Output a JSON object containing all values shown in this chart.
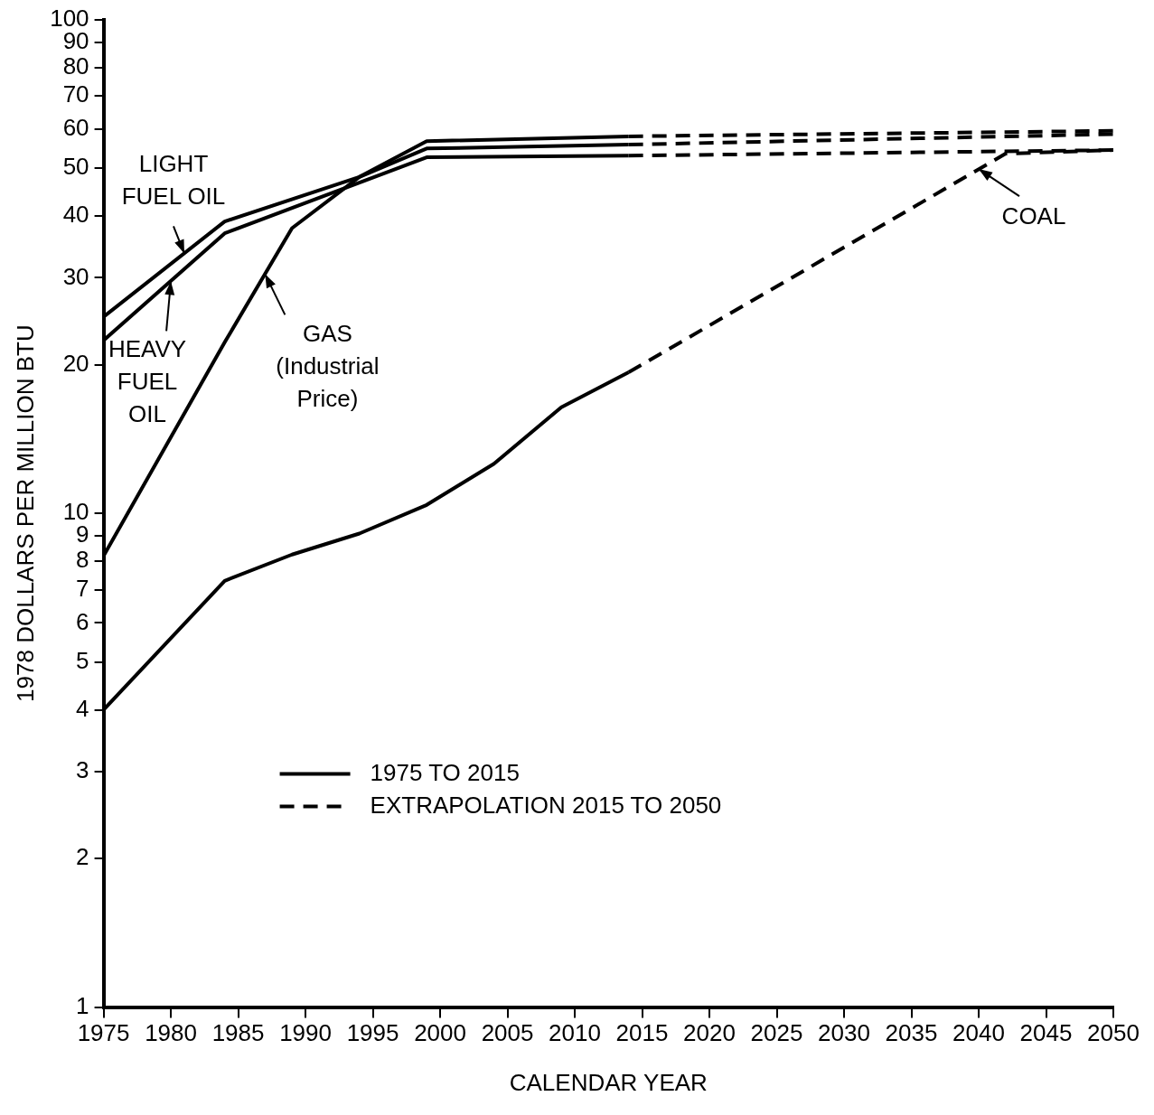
{
  "chart_data": {
    "type": "line",
    "xlabel": "CALENDAR YEAR",
    "ylabel": "1978 DOLLARS PER MILLION BTU",
    "xlim": [
      1975,
      2050
    ],
    "xticks": [
      1975,
      1980,
      1985,
      1990,
      1995,
      2000,
      2005,
      2010,
      2015,
      2020,
      2025,
      2030,
      2035,
      2040,
      2045,
      2050
    ],
    "ylim": [
      1,
      100
    ],
    "yticks": [
      1,
      2,
      3,
      4,
      5,
      6,
      7,
      8,
      9,
      10,
      20,
      30,
      40,
      50,
      60,
      70,
      80,
      90,
      100
    ],
    "log": "y",
    "grid": false,
    "legend": "bottom",
    "marker": "none",
    "series": [
      {
        "name": "1975 TO 2015",
        "color": "#000000",
        "line_style": "solid",
        "x": [
          1975,
          1984,
          1994,
          1999,
          2014
        ],
        "values": [
          25,
          39,
          48,
          54.8,
          55.8
        ]
      },
      {
        "color": "#000000",
        "line_style": "solid",
        "x": [
          1975,
          1984,
          1999,
          2014
        ],
        "values": [
          22.4,
          36.9,
          52.6,
          53
        ]
      },
      {
        "color": "#000000",
        "line_style": "solid",
        "x": [
          1975,
          1984,
          1989,
          1994,
          1999,
          2014
        ],
        "values": [
          8.2,
          22.2,
          37.8,
          48,
          56.7,
          58
        ]
      },
      {
        "color": "#000000",
        "line_style": "solid",
        "x": [
          1975,
          1984,
          1989,
          1994,
          1999,
          2004,
          2009,
          2014
        ],
        "values": [
          4,
          7.3,
          8.25,
          9.1,
          10.4,
          12.6,
          16.4,
          19.3
        ]
      },
      {
        "name": "EXTRAPOLATION 2015 TO 2050",
        "color": "#000000",
        "line_style": "dashed",
        "x": [
          2014,
          2050
        ],
        "values": [
          55.8,
          58.6
        ]
      },
      {
        "color": "#000000",
        "line_style": "dashed",
        "x": [
          2014,
          2050
        ],
        "values": [
          53,
          54.4
        ]
      },
      {
        "color": "#000000",
        "line_style": "dashed",
        "x": [
          2014,
          2050
        ],
        "values": [
          58,
          59.5
        ]
      },
      {
        "color": "#000000",
        "line_style": "dashed",
        "x": [
          2014,
          2042,
          2050
        ],
        "values": [
          19.3,
          53.5,
          54.4
        ]
      }
    ],
    "annotations": [
      {
        "text": "LIGHT\nFUEL OIL",
        "x": 1981,
        "y": 33.6
      },
      {
        "text": "HEAVY\nFUEL\nOIL",
        "x": 1980,
        "y": 29.5
      },
      {
        "text": "GAS\n(Industrial\nPrice)",
        "x": 1987,
        "y": 30.5
      },
      {
        "text": "COAL",
        "x": 2040,
        "y": 49.8
      }
    ]
  }
}
